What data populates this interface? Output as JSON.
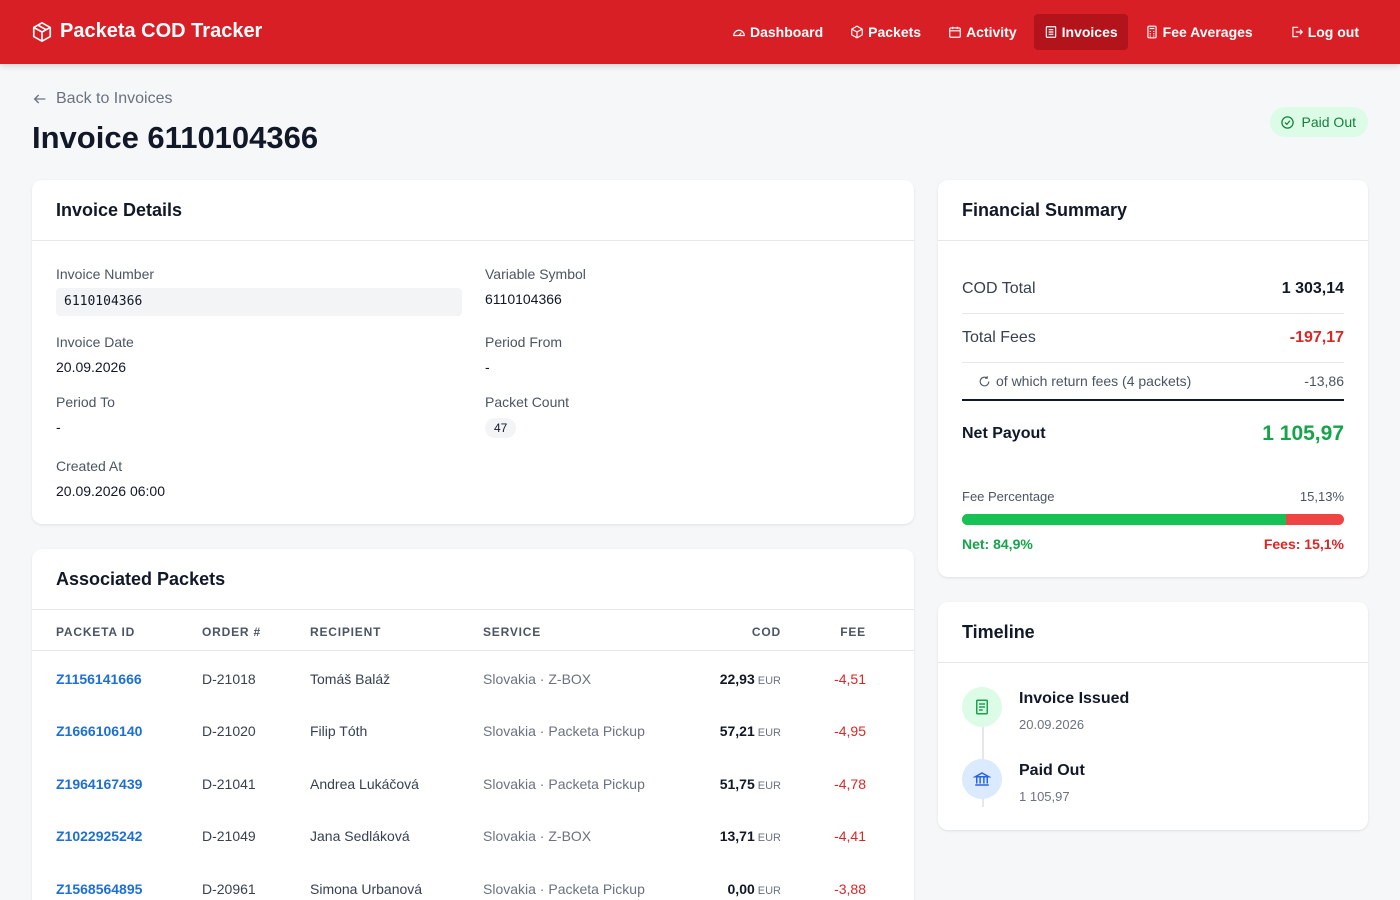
{
  "app": {
    "title": "Packeta COD Tracker"
  },
  "nav": [
    {
      "label": "Dashboard",
      "icon": "gauge-icon"
    },
    {
      "label": "Packets",
      "icon": "box-icon"
    },
    {
      "label": "Activity",
      "icon": "calendar-icon"
    },
    {
      "label": "Invoices",
      "icon": "invoice-icon",
      "active": true
    },
    {
      "label": "Fee Averages",
      "icon": "calculator-icon"
    },
    {
      "label": "Log out",
      "icon": "logout-icon"
    }
  ],
  "page": {
    "back_label": "Back to Invoices",
    "title": "Invoice 6110104366",
    "status": "Paid Out"
  },
  "details": {
    "header": "Invoice Details",
    "invoice_number_label": "Invoice Number",
    "invoice_number": "6110104366",
    "variable_symbol_label": "Variable Symbol",
    "variable_symbol": "6110104366",
    "invoice_date_label": "Invoice Date",
    "invoice_date": "20.09.2026",
    "period_from_label": "Period From",
    "period_from": "-",
    "period_to_label": "Period To",
    "period_to": "-",
    "packet_count_label": "Packet Count",
    "packet_count": "47",
    "created_at_label": "Created At",
    "created_at": "20.09.2026 06:00"
  },
  "packets": {
    "header": "Associated Packets",
    "columns": [
      "PACKETA ID",
      "ORDER #",
      "RECIPIENT",
      "SERVICE",
      "COD",
      "FEE"
    ],
    "currency": "EUR",
    "rows": [
      {
        "id": "Z1156141666",
        "order": "D-21018",
        "recipient": "Tomáš Baláž",
        "service": "Slovakia · Z-BOX",
        "cod": "22,93",
        "fee": "-4,51"
      },
      {
        "id": "Z1666106140",
        "order": "D-21020",
        "recipient": "Filip Tóth",
        "service": "Slovakia · Packeta Pickup",
        "cod": "57,21",
        "fee": "-4,95"
      },
      {
        "id": "Z1964167439",
        "order": "D-21041",
        "recipient": "Andrea Lukáčová",
        "service": "Slovakia · Packeta Pickup",
        "cod": "51,75",
        "fee": "-4,78"
      },
      {
        "id": "Z1022925242",
        "order": "D-21049",
        "recipient": "Jana Sedláková",
        "service": "Slovakia · Z-BOX",
        "cod": "13,71",
        "fee": "-4,41"
      },
      {
        "id": "Z1568564895",
        "order": "D-20961",
        "recipient": "Simona Urbanová",
        "service": "Slovakia · Packeta Pickup",
        "cod": "0,00",
        "fee": "-3,88"
      }
    ]
  },
  "summary": {
    "header": "Financial Summary",
    "cod_total_label": "COD Total",
    "cod_total": "1 303,14",
    "total_fees_label": "Total Fees",
    "total_fees": "-197,17",
    "return_fees_label": "of which return fees (4 packets)",
    "return_fees": "-13,86",
    "net_payout_label": "Net Payout",
    "net_payout": "1 105,97",
    "fee_percentage_label": "Fee Percentage",
    "fee_percentage": "15,13%",
    "net_share_label": "Net: 84,9%",
    "fee_share_label": "Fees: 15,1%",
    "net_fraction": 0.849,
    "colors": {
      "positive": "#16a34a",
      "negative": "#dc2626"
    }
  },
  "timeline": {
    "header": "Timeline",
    "events": [
      {
        "title": "Invoice Issued",
        "sub": "20.09.2026",
        "icon": "document-icon"
      },
      {
        "title": "Paid Out",
        "sub": "1 105,97",
        "icon": "bank-icon"
      }
    ]
  }
}
